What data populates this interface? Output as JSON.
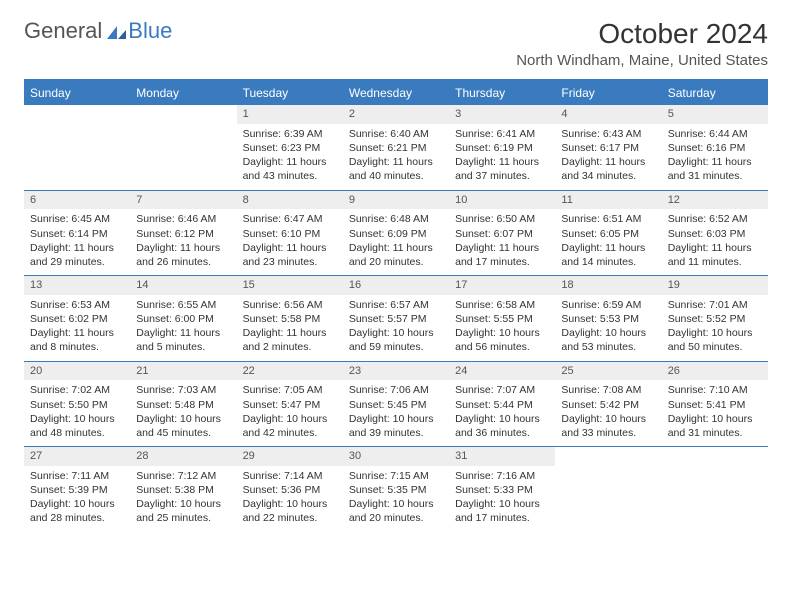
{
  "logo": {
    "text1": "General",
    "text2": "Blue"
  },
  "title": "October 2024",
  "location": "North Windham, Maine, United States",
  "colors": {
    "brand": "#3a7bbf",
    "text": "#333333",
    "muted": "#555555",
    "daynum_bg": "#eeeeee",
    "background": "#ffffff"
  },
  "daysOfWeek": [
    "Sunday",
    "Monday",
    "Tuesday",
    "Wednesday",
    "Thursday",
    "Friday",
    "Saturday"
  ],
  "weeks": [
    [
      {
        "n": "",
        "sr": "",
        "ss": "",
        "dl": ""
      },
      {
        "n": "",
        "sr": "",
        "ss": "",
        "dl": ""
      },
      {
        "n": "1",
        "sr": "6:39 AM",
        "ss": "6:23 PM",
        "dl": "11 hours and 43 minutes."
      },
      {
        "n": "2",
        "sr": "6:40 AM",
        "ss": "6:21 PM",
        "dl": "11 hours and 40 minutes."
      },
      {
        "n": "3",
        "sr": "6:41 AM",
        "ss": "6:19 PM",
        "dl": "11 hours and 37 minutes."
      },
      {
        "n": "4",
        "sr": "6:43 AM",
        "ss": "6:17 PM",
        "dl": "11 hours and 34 minutes."
      },
      {
        "n": "5",
        "sr": "6:44 AM",
        "ss": "6:16 PM",
        "dl": "11 hours and 31 minutes."
      }
    ],
    [
      {
        "n": "6",
        "sr": "6:45 AM",
        "ss": "6:14 PM",
        "dl": "11 hours and 29 minutes."
      },
      {
        "n": "7",
        "sr": "6:46 AM",
        "ss": "6:12 PM",
        "dl": "11 hours and 26 minutes."
      },
      {
        "n": "8",
        "sr": "6:47 AM",
        "ss": "6:10 PM",
        "dl": "11 hours and 23 minutes."
      },
      {
        "n": "9",
        "sr": "6:48 AM",
        "ss": "6:09 PM",
        "dl": "11 hours and 20 minutes."
      },
      {
        "n": "10",
        "sr": "6:50 AM",
        "ss": "6:07 PM",
        "dl": "11 hours and 17 minutes."
      },
      {
        "n": "11",
        "sr": "6:51 AM",
        "ss": "6:05 PM",
        "dl": "11 hours and 14 minutes."
      },
      {
        "n": "12",
        "sr": "6:52 AM",
        "ss": "6:03 PM",
        "dl": "11 hours and 11 minutes."
      }
    ],
    [
      {
        "n": "13",
        "sr": "6:53 AM",
        "ss": "6:02 PM",
        "dl": "11 hours and 8 minutes."
      },
      {
        "n": "14",
        "sr": "6:55 AM",
        "ss": "6:00 PM",
        "dl": "11 hours and 5 minutes."
      },
      {
        "n": "15",
        "sr": "6:56 AM",
        "ss": "5:58 PM",
        "dl": "11 hours and 2 minutes."
      },
      {
        "n": "16",
        "sr": "6:57 AM",
        "ss": "5:57 PM",
        "dl": "10 hours and 59 minutes."
      },
      {
        "n": "17",
        "sr": "6:58 AM",
        "ss": "5:55 PM",
        "dl": "10 hours and 56 minutes."
      },
      {
        "n": "18",
        "sr": "6:59 AM",
        "ss": "5:53 PM",
        "dl": "10 hours and 53 minutes."
      },
      {
        "n": "19",
        "sr": "7:01 AM",
        "ss": "5:52 PM",
        "dl": "10 hours and 50 minutes."
      }
    ],
    [
      {
        "n": "20",
        "sr": "7:02 AM",
        "ss": "5:50 PM",
        "dl": "10 hours and 48 minutes."
      },
      {
        "n": "21",
        "sr": "7:03 AM",
        "ss": "5:48 PM",
        "dl": "10 hours and 45 minutes."
      },
      {
        "n": "22",
        "sr": "7:05 AM",
        "ss": "5:47 PM",
        "dl": "10 hours and 42 minutes."
      },
      {
        "n": "23",
        "sr": "7:06 AM",
        "ss": "5:45 PM",
        "dl": "10 hours and 39 minutes."
      },
      {
        "n": "24",
        "sr": "7:07 AM",
        "ss": "5:44 PM",
        "dl": "10 hours and 36 minutes."
      },
      {
        "n": "25",
        "sr": "7:08 AM",
        "ss": "5:42 PM",
        "dl": "10 hours and 33 minutes."
      },
      {
        "n": "26",
        "sr": "7:10 AM",
        "ss": "5:41 PM",
        "dl": "10 hours and 31 minutes."
      }
    ],
    [
      {
        "n": "27",
        "sr": "7:11 AM",
        "ss": "5:39 PM",
        "dl": "10 hours and 28 minutes."
      },
      {
        "n": "28",
        "sr": "7:12 AM",
        "ss": "5:38 PM",
        "dl": "10 hours and 25 minutes."
      },
      {
        "n": "29",
        "sr": "7:14 AM",
        "ss": "5:36 PM",
        "dl": "10 hours and 22 minutes."
      },
      {
        "n": "30",
        "sr": "7:15 AM",
        "ss": "5:35 PM",
        "dl": "10 hours and 20 minutes."
      },
      {
        "n": "31",
        "sr": "7:16 AM",
        "ss": "5:33 PM",
        "dl": "10 hours and 17 minutes."
      },
      {
        "n": "",
        "sr": "",
        "ss": "",
        "dl": ""
      },
      {
        "n": "",
        "sr": "",
        "ss": "",
        "dl": ""
      }
    ]
  ],
  "labels": {
    "sunrise": "Sunrise:",
    "sunset": "Sunset:",
    "daylight": "Daylight:"
  }
}
